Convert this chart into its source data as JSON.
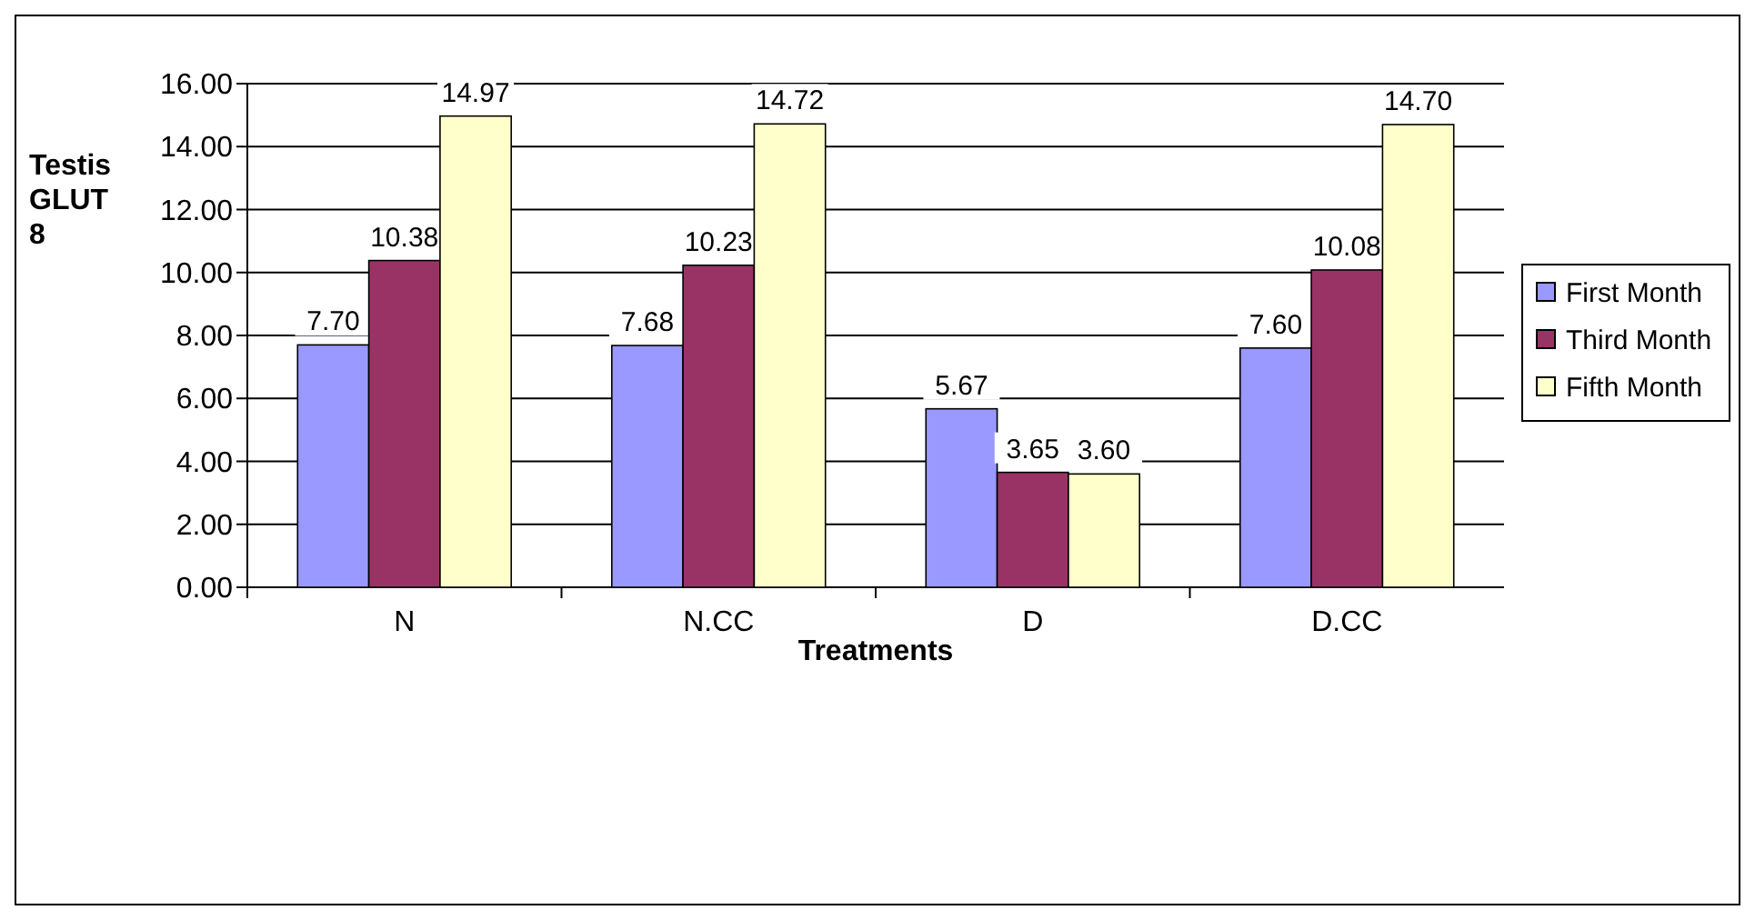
{
  "chart_data": {
    "type": "bar",
    "xlabel": "Treatments",
    "ylabel": "Testis GLUT 8",
    "categories": [
      "N",
      "N.CC",
      "D",
      "D.CC"
    ],
    "series": [
      {
        "name": "First Month",
        "color": "#9999ff",
        "values": [
          7.7,
          7.68,
          5.67,
          7.6
        ],
        "value_labels": [
          "7.70",
          "7.68",
          "5.67",
          "7.60"
        ]
      },
      {
        "name": "Third Month",
        "color": "#993366",
        "values": [
          10.38,
          10.23,
          3.65,
          10.08
        ],
        "value_labels": [
          "10.38",
          "10.23",
          "3.65",
          "10.08"
        ]
      },
      {
        "name": "Fifth Month",
        "color": "#ffffcc",
        "values": [
          14.97,
          14.72,
          3.6,
          14.7
        ],
        "value_labels": [
          "14.97",
          "14.72",
          "3.60",
          "14.70"
        ]
      }
    ],
    "ylim": [
      0,
      16
    ],
    "yticks": [
      {
        "value": 0,
        "label": "0.00"
      },
      {
        "value": 2,
        "label": "2.00"
      },
      {
        "value": 4,
        "label": "4.00"
      },
      {
        "value": 6,
        "label": "6.00"
      },
      {
        "value": 8,
        "label": "8.00"
      },
      {
        "value": 10,
        "label": "10.00"
      },
      {
        "value": 12,
        "label": "12.00"
      },
      {
        "value": 14,
        "label": "14.00"
      },
      {
        "value": 16,
        "label": "16.00"
      }
    ],
    "grid": "y",
    "legend": "right"
  }
}
